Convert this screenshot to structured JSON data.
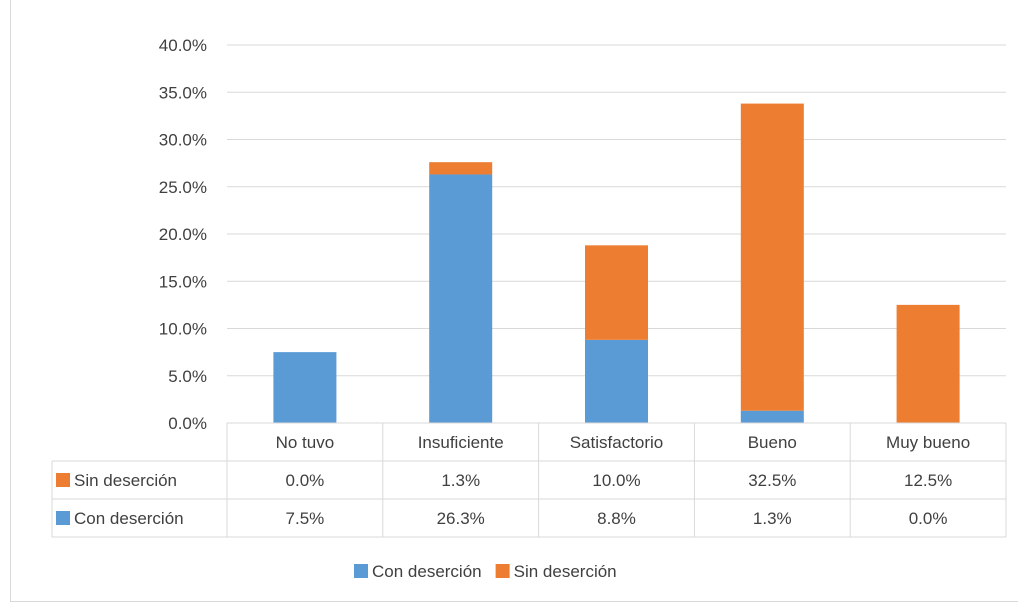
{
  "chart_data": {
    "type": "bar",
    "stacked": true,
    "categories": [
      "No tuvo",
      "Insuficiente",
      "Satisfactorio",
      "Bueno",
      "Muy bueno"
    ],
    "series": [
      {
        "name": "Con deserción",
        "color": "#5b9bd5",
        "values": [
          7.5,
          26.3,
          8.8,
          1.3,
          0.0
        ],
        "labels": [
          "7.5%",
          "26.3%",
          "8.8%",
          "1.3%",
          "0.0%"
        ]
      },
      {
        "name": "Sin deserción",
        "color": "#ed7d31",
        "values": [
          0.0,
          1.3,
          10.0,
          32.5,
          12.5
        ],
        "labels": [
          "0.0%",
          "1.3%",
          "10.0%",
          "32.5%",
          "12.5%"
        ]
      }
    ],
    "ylim": [
      0,
      40
    ],
    "yticks": [
      "0.0%",
      "5.0%",
      "10.0%",
      "15.0%",
      "20.0%",
      "25.0%",
      "30.0%",
      "35.0%",
      "40.0%"
    ],
    "grid": true,
    "legend": "bottom",
    "data_table": true
  }
}
